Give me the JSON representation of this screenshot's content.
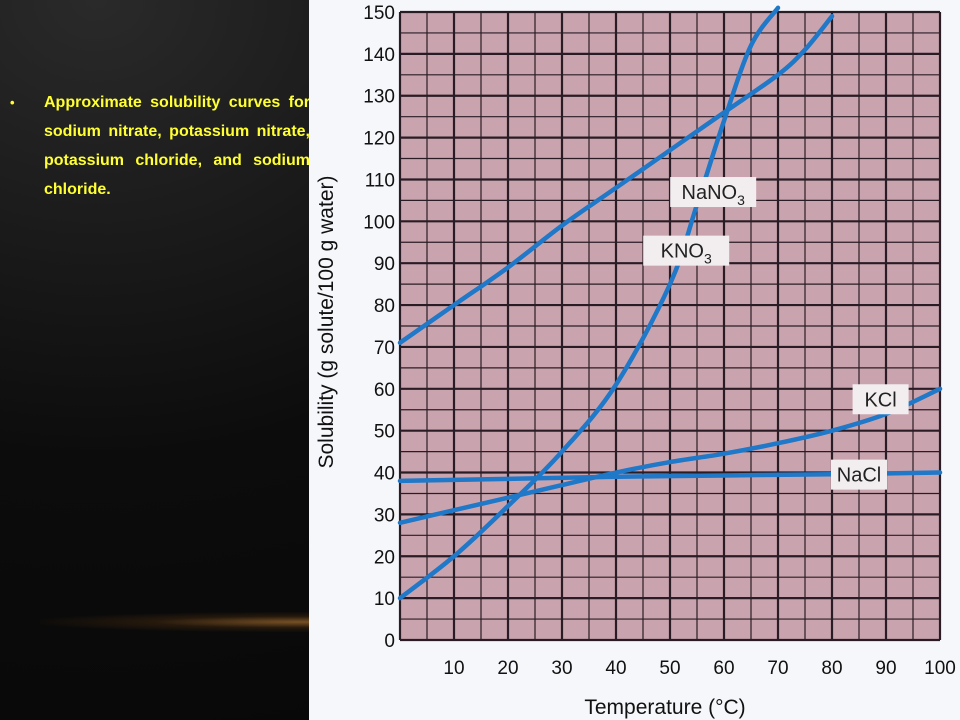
{
  "caption": {
    "bullet": "•",
    "text": "Approximate solubility curves for sodium nitrate, potassium nitrate, potassium chloride, and sodium chloride."
  },
  "colors": {
    "background": "#000000",
    "caption_text": "#ffff33",
    "plot_fill": "#c9a4ae",
    "grid": "#2a1c24",
    "curve": "#1f78c8"
  },
  "chart_data": {
    "type": "line",
    "xlabel": "Temperature (°C)",
    "ylabel": "Solubility (g solute/100 g water)",
    "xlim": [
      0,
      100
    ],
    "ylim": [
      0,
      150
    ],
    "x_ticks": [
      10,
      20,
      30,
      40,
      50,
      60,
      70,
      80,
      90,
      100
    ],
    "y_ticks": [
      0,
      10,
      20,
      30,
      40,
      50,
      60,
      70,
      80,
      90,
      100,
      110,
      120,
      130,
      140,
      150
    ],
    "grid": true,
    "series": [
      {
        "name": "NaNO3",
        "label_main": "NaNO",
        "label_sub": "3",
        "x": [
          0,
          10,
          20,
          30,
          40,
          50,
          60,
          70,
          75,
          80
        ],
        "y": [
          71,
          80,
          89,
          99,
          108,
          117,
          126,
          135,
          141,
          149
        ]
      },
      {
        "name": "KNO3",
        "label_main": "KNO",
        "label_sub": "3",
        "x": [
          0,
          10,
          20,
          30,
          40,
          50,
          55,
          60,
          65,
          70
        ],
        "y": [
          10,
          20,
          32,
          45,
          61,
          85,
          104,
          124,
          142,
          151
        ]
      },
      {
        "name": "KCl",
        "label_main": "KCl",
        "label_sub": "",
        "x": [
          0,
          10,
          20,
          30,
          40,
          50,
          60,
          70,
          80,
          90,
          100
        ],
        "y": [
          28,
          31,
          34,
          37,
          40,
          42.5,
          44.5,
          47,
          50,
          54,
          60
        ]
      },
      {
        "name": "NaCl",
        "label_main": "NaCl",
        "label_sub": "",
        "x": [
          0,
          20,
          40,
          60,
          80,
          100
        ],
        "y": [
          38,
          38.5,
          39,
          39.3,
          39.6,
          40
        ]
      }
    ]
  }
}
